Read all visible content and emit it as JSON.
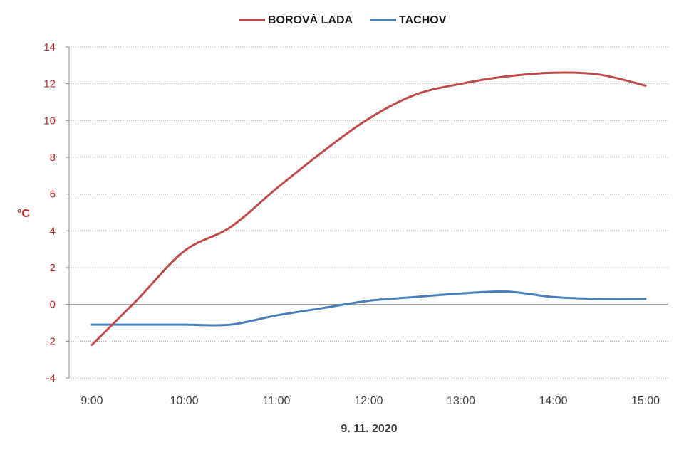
{
  "chart_data": {
    "type": "line",
    "title": "",
    "xlabel": "9. 11. 2020",
    "ylabel": "°C",
    "x": [
      "9:00",
      "9:30",
      "10:00",
      "10:30",
      "11:00",
      "11:30",
      "12:00",
      "12:30",
      "13:00",
      "13:30",
      "14:00",
      "14:30",
      "15:00"
    ],
    "x_ticks": [
      "9:00",
      "10:00",
      "11:00",
      "12:00",
      "13:00",
      "14:00",
      "15:00"
    ],
    "ylim": [
      -4,
      14
    ],
    "y_ticks": [
      -4,
      -2,
      0,
      2,
      4,
      6,
      8,
      10,
      12,
      14
    ],
    "y_tick_labels": [
      "-4",
      "-2",
      "0",
      "2",
      "4",
      "6",
      "8",
      "10",
      "12",
      "14"
    ],
    "grid": true,
    "legend_position": "top-center",
    "series": [
      {
        "name": "BOROVÁ LADA",
        "color": "#be4b48",
        "values": [
          -2.2,
          0.3,
          2.9,
          4.2,
          6.3,
          8.3,
          10.1,
          11.4,
          12.0,
          12.4,
          12.6,
          12.5,
          11.9
        ]
      },
      {
        "name": "TACHOV",
        "color": "#4a7ebb",
        "values": [
          -1.1,
          -1.1,
          -1.1,
          -1.1,
          -0.6,
          -0.2,
          0.2,
          0.4,
          0.6,
          0.7,
          0.4,
          0.3,
          0.3
        ]
      }
    ]
  }
}
